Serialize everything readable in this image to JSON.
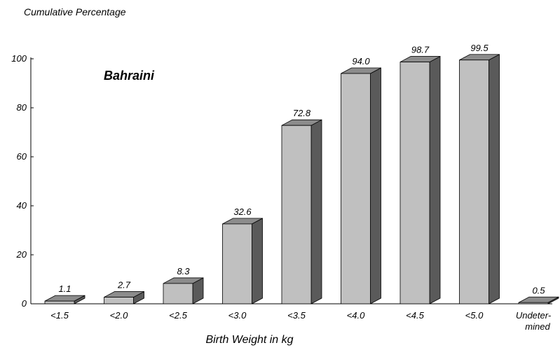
{
  "chart_data": {
    "type": "bar",
    "ylabel": "Cumulative Percentage",
    "xlabel": "Birth Weight in kg",
    "annotation": "Bahraini",
    "categories": [
      "<1.5",
      "<2.0",
      "<2.5",
      "<3.0",
      "<3.5",
      "<4.0",
      "<4.5",
      "<5.0",
      "Undeter-\nmined"
    ],
    "values": [
      1.1,
      2.7,
      8.3,
      32.6,
      72.8,
      94.0,
      98.7,
      99.5,
      0.5
    ],
    "value_labels": [
      "1.1",
      "2.7",
      "8.3",
      "32.6",
      "72.8",
      "94.0",
      "98.7",
      "99.5",
      "0.5"
    ],
    "yticks": [
      0,
      20,
      40,
      60,
      80,
      100
    ],
    "ylim": [
      0,
      110
    ],
    "grid": false,
    "bar_style": "3d",
    "colors": {
      "front": "#c0c0c0",
      "side": "#5a5a5a",
      "top": "#8c8c8c",
      "stroke": "#000000"
    }
  }
}
